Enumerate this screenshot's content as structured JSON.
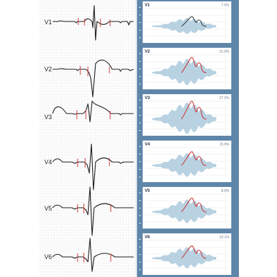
{
  "leads": [
    {
      "label": "V1"
    },
    {
      "label": "V2"
    },
    {
      "label": "V3"
    },
    {
      "label": "V4"
    },
    {
      "label": "V5"
    },
    {
      "label": "V6"
    }
  ],
  "panels": [
    {
      "title": "V1",
      "percent": "7.0%"
    },
    {
      "title": "V2",
      "percent": "31.0%"
    },
    {
      "title": "V3",
      "percent": "27.2%"
    },
    {
      "title": "V4",
      "percent": "15.9%"
    },
    {
      "title": "V5",
      "percent": "8.0%"
    },
    {
      "title": "V6",
      "percent": "10.1%"
    }
  ],
  "colors": {
    "sidebar": "#5f86a9",
    "trace": "#1a1a1a",
    "marker": "#d23a3a",
    "spectrum_fill": "#b8d2e2",
    "envelope": "#cc2b2b"
  }
}
